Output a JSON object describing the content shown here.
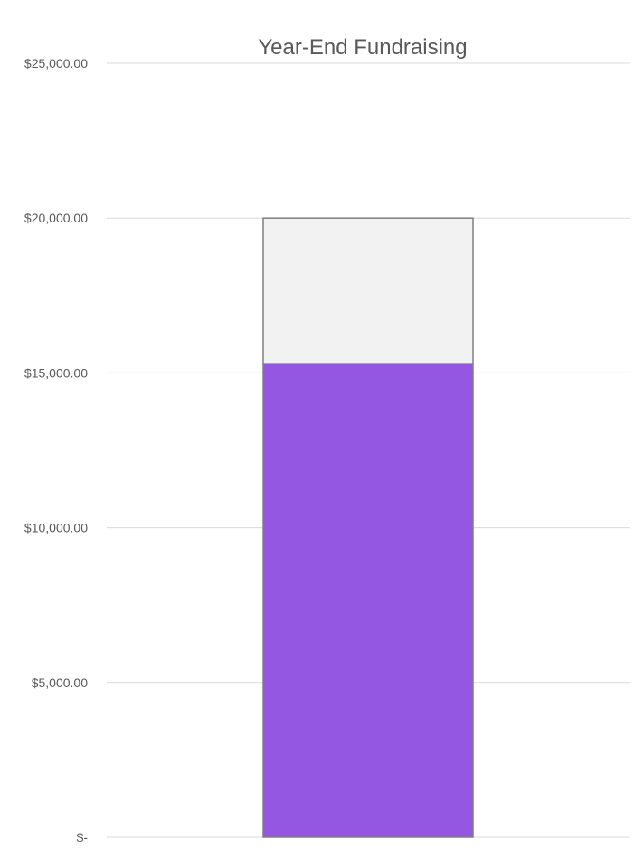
{
  "chart_data": {
    "type": "bar",
    "stacked": true,
    "title": "Year-End Fundraising",
    "xlabel": "",
    "ylabel": "",
    "categories": [
      ""
    ],
    "series": [
      {
        "values": [
          15300
        ],
        "color": "#9457E2"
      },
      {
        "values": [
          4700
        ],
        "color": "#F2F2F2"
      }
    ],
    "ylim": [
      0,
      25000
    ],
    "yticks": [
      0,
      5000,
      10000,
      15000,
      20000,
      25000
    ],
    "ytick_labels": [
      "$-",
      "$5,000.00",
      "$10,000.00",
      "$15,000.00",
      "$20,000.00",
      "$25,000.00"
    ],
    "grid": true,
    "legend": "none"
  }
}
